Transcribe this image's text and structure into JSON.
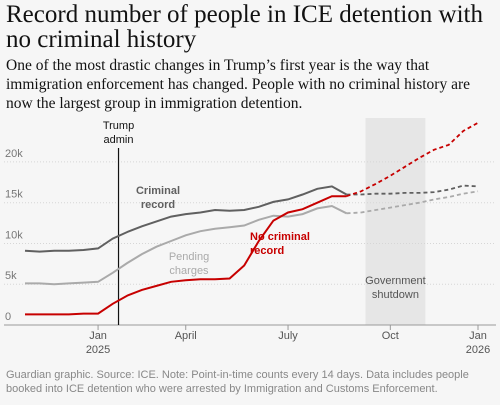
{
  "title": "Record number of people in ICE detention with no criminal history",
  "subtitle": "One of the most drastic changes in Trump’s first year is the way that immigration enforcement has changed. People with no criminal history are now the largest group in immigration detention.",
  "source": "Guardian graphic. Source: ICE. Note: Point-in-time counts every 14 days. Data includes people booked into ICE detention who were arrested by Immigration and Customs Enforcement.",
  "chart_data": {
    "type": "line",
    "categories": [
      null,
      null,
      null,
      null,
      null,
      "Jan 2025",
      null,
      null,
      null,
      null,
      null,
      "April",
      null,
      null,
      null,
      null,
      null,
      null,
      "July",
      null,
      null,
      null,
      null,
      null,
      null,
      "Oct",
      null,
      null,
      null,
      null,
      null,
      "Jan 2026"
    ],
    "ylim": [
      0,
      26000
    ],
    "yticks": [
      0,
      {
        "value": 5000,
        "label": "5k"
      },
      {
        "value": 10000,
        "label": "10k"
      },
      {
        "value": 15000,
        "label": "15k"
      },
      {
        "value": 20000,
        "label": "20k"
      }
    ],
    "grid": true,
    "marker": {
      "label": "Trump admin",
      "x": 6.4
    },
    "shutdown": {
      "label": "Government shutdown",
      "range": [
        23.3,
        27.4
      ]
    },
    "series": [
      {
        "name": "Criminal record",
        "color": "#606060",
        "values": [
          9100,
          9000,
          9100,
          9100,
          9200,
          9400,
          10600,
          11400,
          12100,
          12700,
          13300,
          13600,
          13800,
          14100,
          14000,
          14100,
          14500,
          15100,
          15400,
          16000,
          16700,
          17000,
          16000,
          null,
          null,
          null,
          null,
          null,
          null,
          null,
          null,
          null
        ],
        "projected": [
          null,
          null,
          null,
          null,
          null,
          null,
          null,
          null,
          null,
          null,
          null,
          null,
          null,
          null,
          null,
          null,
          null,
          null,
          null,
          null,
          null,
          null,
          16000,
          16000,
          16100,
          16100,
          16200,
          16200,
          16300,
          16600,
          17100,
          17000
        ]
      },
      {
        "name": "Pending charges",
        "color": "#aaaaaa",
        "values": [
          5100,
          5100,
          5000,
          5100,
          5200,
          5300,
          6400,
          7600,
          8700,
          9600,
          10300,
          11000,
          11500,
          11800,
          12000,
          12200,
          12900,
          13400,
          13300,
          13600,
          14300,
          14600,
          13700,
          null,
          null,
          null,
          null,
          null,
          null,
          null,
          null,
          null
        ],
        "projected": [
          null,
          null,
          null,
          null,
          null,
          null,
          null,
          null,
          null,
          null,
          null,
          null,
          null,
          null,
          null,
          null,
          null,
          null,
          null,
          null,
          null,
          null,
          13700,
          13800,
          14100,
          14400,
          14700,
          15000,
          15400,
          15700,
          16100,
          16400
        ]
      },
      {
        "name": "No criminal record",
        "color": "#c70000",
        "values": [
          1300,
          1300,
          1300,
          1300,
          1400,
          1400,
          2600,
          3600,
          4300,
          4800,
          5300,
          5500,
          5600,
          5600,
          5700,
          7300,
          10300,
          12800,
          13800,
          14200,
          15000,
          15800,
          15800,
          null,
          null,
          null,
          null,
          null,
          null,
          null,
          null,
          null
        ],
        "projected": [
          null,
          null,
          null,
          null,
          null,
          null,
          null,
          null,
          null,
          null,
          null,
          null,
          null,
          null,
          null,
          null,
          null,
          null,
          null,
          null,
          null,
          null,
          15800,
          16400,
          17300,
          18300,
          19400,
          20500,
          21500,
          22100,
          23800,
          24800
        ]
      }
    ]
  }
}
